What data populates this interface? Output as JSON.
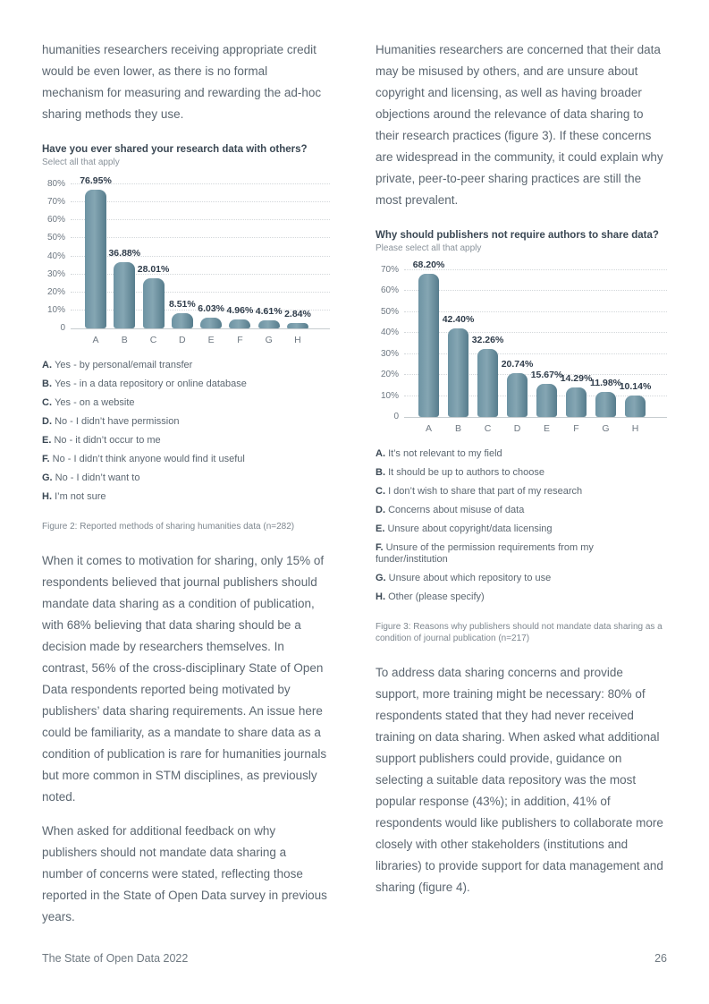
{
  "left_column": {
    "para1": "humanities researchers receiving appropriate credit would be even lower, as there is no formal mechanism for measuring and rewarding the ad-hoc sharing methods they use.",
    "para2": "When it comes to motivation for sharing, only 15% of respondents believed that journal publishers should mandate data sharing as a condition of publication, with 68% believing that data sharing should be a decision made by researchers themselves. In contrast, 56% of the cross-disciplinary State of Open Data respondents reported being motivated by publishers’ data sharing requirements. An issue here could be familiarity, as a mandate to share data as a condition of publication is rare for humanities journals but more common in STM disciplines, as previously noted.",
    "para3": "When asked for additional feedback on why publishers should not mandate data sharing a number of concerns were stated, reflecting those reported in the State of Open Data survey in previous years."
  },
  "right_column": {
    "para1": "Humanities researchers are concerned that their data may be misused by others, and are unsure about copyright and licensing, as well as having broader objections around the relevance of data sharing to their research practices (figure 3). If these concerns are widespread in the community, it could explain why private, peer-to-peer sharing practices are still the most prevalent.",
    "para2": "To address data sharing concerns and provide support, more training might be necessary: 80% of respondents stated that they had never received training on data sharing. When asked what additional support publishers could provide, guidance on selecting a suitable data repository was the most popular response (43%); in addition, 41% of respondents would like publishers to collaborate more closely with other stakeholders (institutions and libraries) to provide support for data management and sharing (figure 4)."
  },
  "chart_data": [
    {
      "type": "bar",
      "title": "Have you ever shared your research data with others?",
      "subtitle": "Select all that apply",
      "categories": [
        "A",
        "B",
        "C",
        "D",
        "E",
        "F",
        "G",
        "H"
      ],
      "values": [
        76.95,
        36.88,
        28.01,
        8.51,
        6.03,
        4.96,
        4.61,
        2.84
      ],
      "labels": [
        "76.95%",
        "36.88%",
        "28.01%",
        "8.51%",
        "6.03%",
        "4.96%",
        "4.61%",
        "2.84%"
      ],
      "ylim": [
        0,
        80
      ],
      "yticks": [
        80,
        70,
        60,
        50,
        40,
        30,
        20,
        10,
        0
      ],
      "grid": true,
      "legend_position": "below",
      "bar_color": "#6d93a3",
      "legend": [
        {
          "key": "A.",
          "text": "Yes - by personal/email transfer"
        },
        {
          "key": "B.",
          "text": "Yes - in a data repository or online database"
        },
        {
          "key": "C.",
          "text": "Yes - on a website"
        },
        {
          "key": "D.",
          "text": "No - I didn’t have permission"
        },
        {
          "key": "E.",
          "text": "No - it didn’t occur to me"
        },
        {
          "key": "F.",
          "text": "No - I didn’t think anyone would find it useful"
        },
        {
          "key": "G.",
          "text": "No - I didn’t want to"
        },
        {
          "key": "H.",
          "text": "I’m not sure"
        }
      ],
      "caption": "Figure 2: Reported methods of sharing humanities data (n=282)"
    },
    {
      "type": "bar",
      "title": "Why should publishers not require authors to share data?",
      "subtitle": "Please select all that apply",
      "categories": [
        "A",
        "B",
        "C",
        "D",
        "E",
        "F",
        "G",
        "H"
      ],
      "values": [
        68.2,
        42.4,
        32.26,
        20.74,
        15.67,
        14.29,
        11.98,
        10.14
      ],
      "labels": [
        "68.20%",
        "42.40%",
        "32.26%",
        "20.74%",
        "15.67%",
        "14.29%",
        "11.98%",
        "10.14%"
      ],
      "ylim": [
        0,
        70
      ],
      "yticks": [
        70,
        60,
        50,
        40,
        30,
        20,
        10,
        0
      ],
      "grid": true,
      "legend_position": "below",
      "bar_color": "#6d93a3",
      "legend": [
        {
          "key": "A.",
          "text": "It’s not relevant to my field"
        },
        {
          "key": "B.",
          "text": "It should be up to authors to choose"
        },
        {
          "key": "C.",
          "text": "I don’t wish to share that part of my research"
        },
        {
          "key": "D.",
          "text": "Concerns about misuse of data"
        },
        {
          "key": "E.",
          "text": "Unsure about copyright/data licensing"
        },
        {
          "key": "F.",
          "text": "Unsure of the permission requirements from my funder/institution"
        },
        {
          "key": "G.",
          "text": "Unsure about which repository to use"
        },
        {
          "key": "H.",
          "text": "Other (please specify)"
        }
      ],
      "caption": "Figure 3: Reasons why publishers should not mandate data sharing as a condition of journal publication (n=217)"
    }
  ],
  "footer": {
    "title": "The State of Open Data 2022",
    "page_number": "26"
  }
}
